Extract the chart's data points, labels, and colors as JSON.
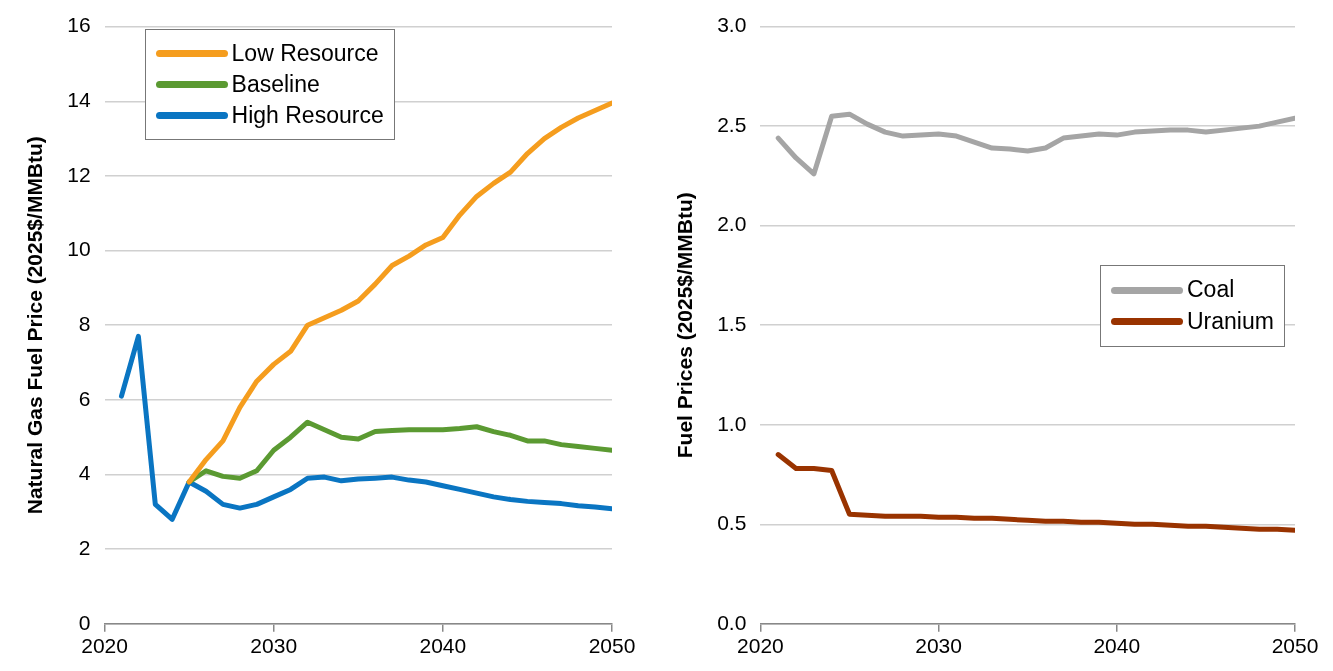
{
  "chart_data": [
    {
      "type": "line",
      "ylabel": "Natural Gas Fuel Price (2025$/MMBtu)",
      "x": [
        2021,
        2022,
        2023,
        2024,
        2025,
        2026,
        2027,
        2028,
        2029,
        2030,
        2031,
        2032,
        2033,
        2034,
        2035,
        2036,
        2037,
        2038,
        2039,
        2040,
        2041,
        2042,
        2043,
        2044,
        2045,
        2046,
        2047,
        2048,
        2049,
        2050
      ],
      "xlim": [
        2020,
        2050
      ],
      "xticks": [
        2020,
        2030,
        2040,
        2050
      ],
      "ylim": [
        0,
        16
      ],
      "yticks": [
        0,
        2,
        4,
        6,
        8,
        10,
        12,
        14,
        16
      ],
      "grid": "y",
      "legend": "top left",
      "marker": "none",
      "series": [
        {
          "name": "Low Resource",
          "color": "#f59d1e",
          "values": [
            null,
            null,
            null,
            null,
            3.8,
            4.4,
            4.9,
            5.8,
            6.5,
            6.95,
            7.3,
            8.0,
            8.2,
            8.4,
            8.65,
            9.1,
            9.6,
            9.85,
            10.15,
            10.35,
            10.95,
            11.45,
            11.8,
            12.1,
            12.6,
            13.0,
            13.3,
            13.55,
            13.75,
            13.95
          ]
        },
        {
          "name": "Baseline",
          "color": "#5b9a32",
          "values": [
            null,
            null,
            null,
            null,
            3.8,
            4.1,
            3.95,
            3.9,
            4.1,
            4.65,
            5.0,
            5.4,
            5.2,
            5.0,
            4.95,
            5.15,
            5.18,
            5.2,
            5.2,
            5.2,
            5.23,
            5.28,
            5.15,
            5.05,
            4.9,
            4.9,
            4.8,
            4.75,
            4.7,
            4.65
          ]
        },
        {
          "name": "High Resource",
          "color": "#0a75c2",
          "values": [
            6.1,
            7.7,
            3.2,
            2.8,
            3.8,
            3.55,
            3.2,
            3.1,
            3.2,
            3.4,
            3.6,
            3.9,
            3.93,
            3.83,
            3.88,
            3.9,
            3.93,
            3.85,
            3.8,
            3.7,
            3.6,
            3.5,
            3.4,
            3.33,
            3.28,
            3.25,
            3.22,
            3.16,
            3.13,
            3.08
          ]
        }
      ]
    },
    {
      "type": "line",
      "ylabel": "Fuel Prices (2025$/MMBtu)",
      "x": [
        2021,
        2022,
        2023,
        2024,
        2025,
        2026,
        2027,
        2028,
        2029,
        2030,
        2031,
        2032,
        2033,
        2034,
        2035,
        2036,
        2037,
        2038,
        2039,
        2040,
        2041,
        2042,
        2043,
        2044,
        2045,
        2046,
        2047,
        2048,
        2049,
        2050
      ],
      "xlim": [
        2020,
        2050
      ],
      "xticks": [
        2020,
        2030,
        2040,
        2050
      ],
      "ylim": [
        0,
        3
      ],
      "yticks": [
        {
          "value": 0,
          "label": "0.0"
        },
        0.5,
        {
          "value": 1,
          "label": "1.0"
        },
        1.5,
        {
          "value": 2,
          "label": "2.0"
        },
        2.5,
        {
          "value": 3,
          "label": "3.0"
        }
      ],
      "grid": "y",
      "legend": "right",
      "marker": "none",
      "series": [
        {
          "name": "Coal",
          "color": "#a5a5a5",
          "values": [
            2.44,
            2.34,
            2.26,
            2.55,
            2.56,
            2.51,
            2.47,
            2.45,
            2.455,
            2.46,
            2.45,
            2.42,
            2.39,
            2.385,
            2.375,
            2.39,
            2.44,
            2.45,
            2.46,
            2.455,
            2.47,
            2.475,
            2.48,
            2.48,
            2.47,
            2.48,
            2.49,
            2.5,
            2.52,
            2.54
          ]
        },
        {
          "name": "Uranium",
          "color": "#993300",
          "values": [
            0.85,
            0.78,
            0.78,
            0.77,
            0.55,
            0.545,
            0.54,
            0.54,
            0.54,
            0.535,
            0.535,
            0.53,
            0.53,
            0.525,
            0.52,
            0.515,
            0.515,
            0.51,
            0.51,
            0.505,
            0.5,
            0.5,
            0.495,
            0.49,
            0.49,
            0.485,
            0.48,
            0.475,
            0.475,
            0.47
          ]
        }
      ]
    }
  ]
}
